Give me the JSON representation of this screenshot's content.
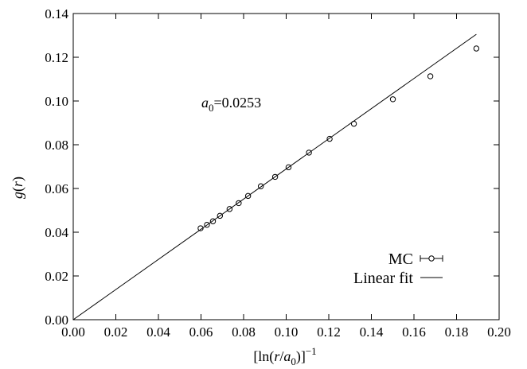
{
  "chart_data": {
    "type": "scatter",
    "xlim": [
      0.0,
      0.2
    ],
    "ylim": [
      0.0,
      0.14
    ],
    "xticks": [
      "0.00",
      "0.02",
      "0.04",
      "0.06",
      "0.08",
      "0.10",
      "0.12",
      "0.14",
      "0.16",
      "0.18",
      "0.20"
    ],
    "yticks": [
      "0.00",
      "0.02",
      "0.04",
      "0.06",
      "0.08",
      "0.10",
      "0.12",
      "0.14"
    ],
    "xlabel": {
      "pre": "[ln(",
      "var_r": "r",
      "slash": "/",
      "var_a": "a",
      "sub": "0",
      "post": ")]",
      "sup": "−1"
    },
    "ylabel": {
      "g": "g",
      "open": "(",
      "r": "r",
      "close": ")"
    },
    "annotation": {
      "a": "a",
      "sub": "0",
      "rest": "=0.0253"
    },
    "grid": false,
    "legend_position": "bottom-right",
    "legend": {
      "mc_label": "MC",
      "fit_label": "Linear fit"
    },
    "series": [
      {
        "name": "MC",
        "style": "points-with-errorbars",
        "x": [
          0.0598,
          0.0628,
          0.0656,
          0.0689,
          0.0734,
          0.0777,
          0.0821,
          0.0881,
          0.0948,
          0.1011,
          0.1107,
          0.1204,
          0.1318,
          0.1501,
          0.1677,
          0.1893
        ],
        "y": [
          0.0418,
          0.0434,
          0.045,
          0.0475,
          0.0506,
          0.0533,
          0.0566,
          0.061,
          0.0653,
          0.0697,
          0.0764,
          0.0827,
          0.0896,
          0.1008,
          0.1113,
          0.124
        ]
      },
      {
        "name": "Linear fit",
        "style": "line",
        "x": [
          0.0,
          0.1893
        ],
        "y": [
          0.0,
          0.1305
        ]
      }
    ]
  }
}
